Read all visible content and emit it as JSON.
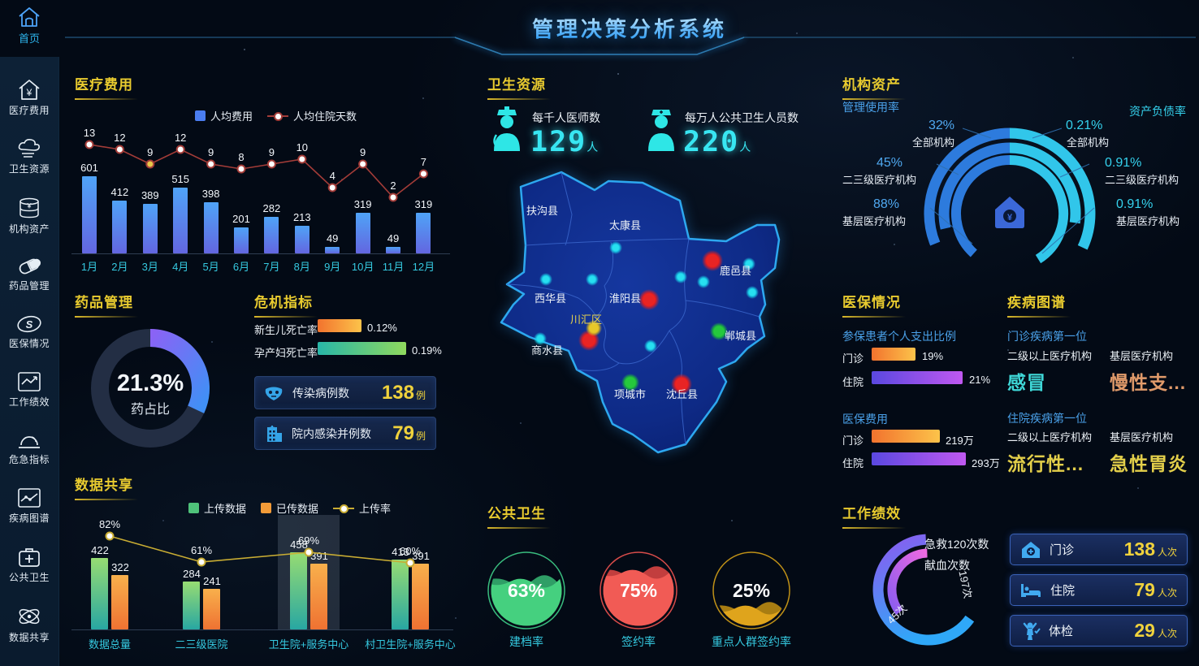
{
  "app": {
    "title": "管理决策分析系统"
  },
  "sidebar": {
    "home": {
      "label": "首页",
      "icon": "home-icon"
    },
    "items": [
      {
        "label": "医疗费用",
        "icon": "medical-cost-icon"
      },
      {
        "label": "卫生资源",
        "icon": "health-resource-icon"
      },
      {
        "label": "机构资产",
        "icon": "asset-icon"
      },
      {
        "label": "药品管理",
        "icon": "drug-icon"
      },
      {
        "label": "医保情况",
        "icon": "insurance-icon"
      },
      {
        "label": "工作绩效",
        "icon": "performance-icon"
      },
      {
        "label": "危急指标",
        "icon": "critical-icon"
      },
      {
        "label": "疾病图谱",
        "icon": "disease-icon"
      },
      {
        "label": "公共卫生",
        "icon": "public-health-icon"
      },
      {
        "label": "数据共享",
        "icon": "data-share-icon"
      }
    ]
  },
  "medical_expense": {
    "title": "医疗费用",
    "chart_data": {
      "type": "bar+line",
      "categories": [
        "1月",
        "2月",
        "3月",
        "4月",
        "5月",
        "6月",
        "7月",
        "8月",
        "9月",
        "10月",
        "11月",
        "12月"
      ],
      "series": [
        {
          "name": "人均费用",
          "type": "bar",
          "values": [
            601,
            412,
            389,
            515,
            398,
            201,
            282,
            213,
            49,
            319,
            49,
            319
          ]
        },
        {
          "name": "人均住院天数",
          "type": "line",
          "values": [
            13,
            12,
            9,
            12,
            9,
            8,
            9,
            10,
            4,
            9,
            2,
            7
          ]
        }
      ],
      "legend_position": "top"
    }
  },
  "health_resource": {
    "title": "卫生资源",
    "stats": [
      {
        "icon": "doctor-icon",
        "label": "每千人医师数",
        "value": "129",
        "unit": "人"
      },
      {
        "icon": "nurse-icon",
        "label": "每万人公共卫生人员数",
        "value": "220",
        "unit": "人"
      }
    ]
  },
  "assets": {
    "title": "机构资产",
    "left_header": "管理使用率",
    "right_header": "资产负债率",
    "usage": [
      {
        "value": "32%",
        "label": "全部机构"
      },
      {
        "value": "45%",
        "label": "二三级医疗机构"
      },
      {
        "value": "88%",
        "label": "基层医疗机构"
      }
    ],
    "debt": [
      {
        "value": "0.21%",
        "label": "全部机构"
      },
      {
        "value": "0.91%",
        "label": "二三级医疗机构"
      },
      {
        "value": "0.91%",
        "label": "基层医疗机构"
      }
    ]
  },
  "drug": {
    "title": "药品管理",
    "percent": "21.3%",
    "label": "药占比"
  },
  "crisis": {
    "title": "危机指标",
    "bars": [
      {
        "label": "新生儿死亡率",
        "value": "0.12%"
      },
      {
        "label": "孕产妇死亡率",
        "value": "0.19%"
      }
    ],
    "cards": [
      {
        "icon": "mask-icon",
        "label": "传染病例数",
        "value": "138",
        "unit": "例"
      },
      {
        "icon": "hospital-icon",
        "label": "院内感染并例数",
        "value": "79",
        "unit": "例"
      }
    ]
  },
  "map": {
    "districts": [
      "扶沟县",
      "太康县",
      "西华县",
      "淮阳县",
      "川汇区",
      "商水县",
      "鹿邑县",
      "郸城县",
      "项城市",
      "沈丘县"
    ],
    "marker_colors": {
      "red": "#e82424",
      "green": "#25c93c",
      "yellow": "#e8c828",
      "cyan": "#27e0f0"
    }
  },
  "insurance": {
    "title": "医保情况",
    "group1": {
      "header": "参保患者个人支出比例",
      "rows": [
        {
          "label": "门诊",
          "value": "19%"
        },
        {
          "label": "住院",
          "value": "21%"
        }
      ]
    },
    "group2": {
      "header": "医保费用",
      "rows": [
        {
          "label": "门诊",
          "value": "219万"
        },
        {
          "label": "住院",
          "value": "293万"
        }
      ]
    }
  },
  "disease": {
    "title": "疾病图谱",
    "sections": [
      {
        "header": "门诊疾病第一位",
        "items": [
          {
            "org": "二级以上医疗机构",
            "name": "感冒",
            "color": "#3fd8d8"
          },
          {
            "org": "基层医疗机构",
            "name": "慢性支...",
            "color": "#e09a6a"
          }
        ]
      },
      {
        "header": "住院疾病第一位",
        "items": [
          {
            "org": "二级以上医疗机构",
            "name": "流行性...",
            "color": "#e3cf4a"
          },
          {
            "org": "基层医疗机构",
            "name": "急性胃炎",
            "color": "#e3cf4a"
          }
        ]
      }
    ]
  },
  "data_share": {
    "title": "数据共享",
    "chart_data": {
      "type": "bar+line",
      "categories": [
        "数据总量",
        "二三级医院",
        "卫生院+服务中心",
        "村卫生院+服务中心"
      ],
      "series": [
        {
          "name": "上传数据",
          "type": "bar",
          "values": [
            422,
            284,
            458,
            413
          ]
        },
        {
          "name": "已传数据",
          "type": "bar",
          "values": [
            322,
            241,
            391,
            391
          ]
        },
        {
          "name": "上传率",
          "type": "line",
          "values": [
            82,
            61,
            69,
            60
          ],
          "unit": "%"
        }
      ],
      "highlighted_category": "卫生院+服务中心"
    }
  },
  "public_health": {
    "title": "公共卫生",
    "gauges": [
      {
        "label": "建档率",
        "percent": "63%",
        "value": 63,
        "color": "#45d07f"
      },
      {
        "label": "签约率",
        "percent": "75%",
        "value": 75,
        "color": "#f15b55"
      },
      {
        "label": "重点人群签约率",
        "percent": "25%",
        "value": 25,
        "color": "#dfa41c"
      }
    ]
  },
  "performance": {
    "title": "工作绩效",
    "arcs": [
      {
        "label": "急救120次数",
        "value": "197次"
      },
      {
        "label": "献血次数",
        "value": "45次"
      }
    ],
    "cards": [
      {
        "icon": "clinic-icon",
        "label": "门诊",
        "value": "138",
        "unit": "人次"
      },
      {
        "icon": "bed-icon",
        "label": "住院",
        "value": "79",
        "unit": "人次"
      },
      {
        "icon": "checkup-icon",
        "label": "体检",
        "value": "29",
        "unit": "人次"
      }
    ]
  },
  "colors": {
    "accent_yellow": "#e9cb2f",
    "accent_cyan": "#35c9e0",
    "accent_blue": "#4aa0e8",
    "bar_blue": "#4fa3f7",
    "line_red": "#a33c38",
    "gauge_blue": "#2d7bdd",
    "gauge_cyan": "#31c6ea",
    "value_yellow": "#f0d23c"
  }
}
